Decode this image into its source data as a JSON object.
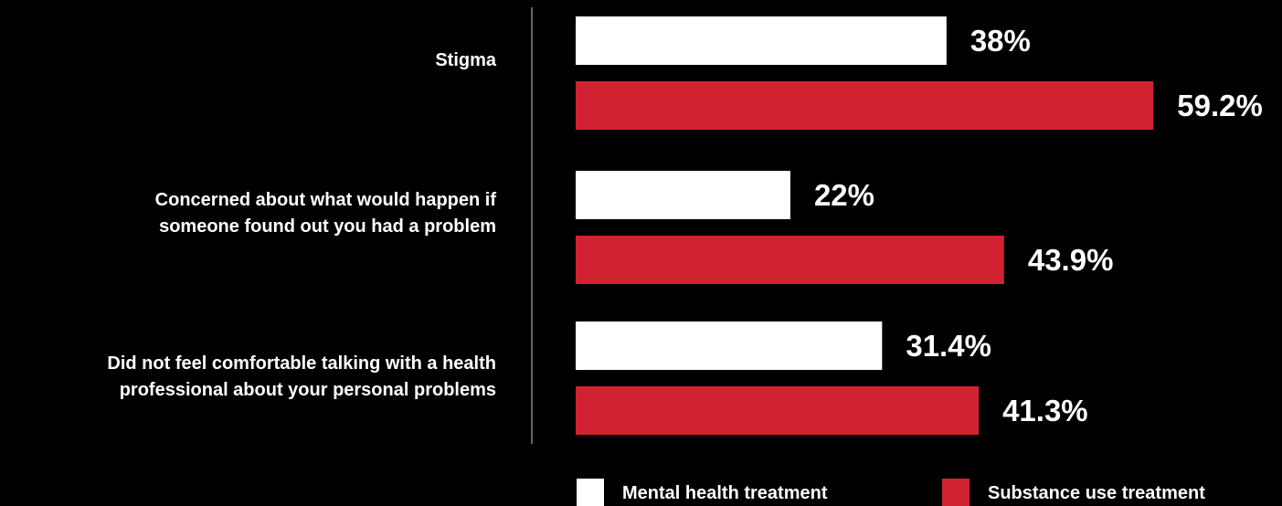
{
  "chart_data": {
    "type": "bar",
    "orientation": "horizontal",
    "categories": [
      "Stigma",
      "Concerned about what would happen if someone found out you had a problem",
      "Did not feel comfortable talking with a health professional about your personal problems"
    ],
    "category_lines": [
      [
        "Stigma"
      ],
      [
        "Concerned about what would happen if",
        "someone found out you had a problem"
      ],
      [
        "Did not feel comfortable talking with a health",
        "professional about your personal problems"
      ]
    ],
    "series": [
      {
        "name": "Mental health treatment",
        "color": "#ffffff",
        "values": [
          38,
          22,
          31.4
        ],
        "labels": [
          "38%",
          "22%",
          "31.4%"
        ]
      },
      {
        "name": "Substance use treatment",
        "color": "#d12231",
        "values": [
          59.2,
          43.9,
          41.3
        ],
        "labels": [
          "59.2%",
          "43.9%",
          "41.3%"
        ]
      }
    ],
    "value_unit": "%",
    "xlim": [
      0,
      100
    ],
    "grid": false,
    "legend_position": "bottom"
  }
}
